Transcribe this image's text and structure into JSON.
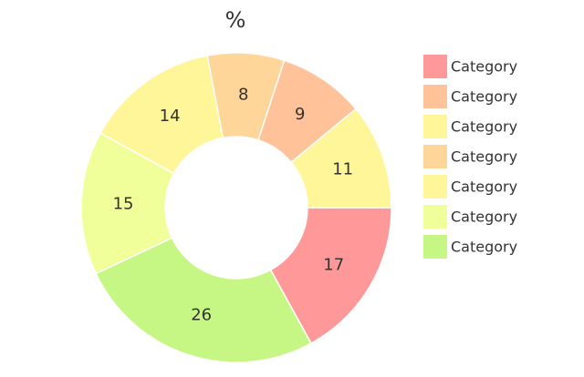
{
  "chart_data": {
    "type": "pie",
    "variant": "donut",
    "title": "%",
    "legend_position": "right",
    "grid": false,
    "slices": [
      {
        "label": "Category",
        "value": 17,
        "color": "#FF9999"
      },
      {
        "label": "Category",
        "value": 9,
        "color": "#FFC299"
      },
      {
        "label": "Category",
        "value": 11,
        "color": "#FFF599"
      },
      {
        "label": "Category",
        "value": 8,
        "color": "#FFD699"
      },
      {
        "label": "Category",
        "value": 14,
        "color": "#FFF599"
      },
      {
        "label": "Category",
        "value": 15,
        "color": "#F0FF99"
      },
      {
        "label": "Category",
        "value": 26,
        "color": "#C6F785"
      }
    ],
    "wedge_order_clockwise_from_east": [
      0,
      6,
      5,
      4,
      3,
      1,
      2
    ]
  }
}
